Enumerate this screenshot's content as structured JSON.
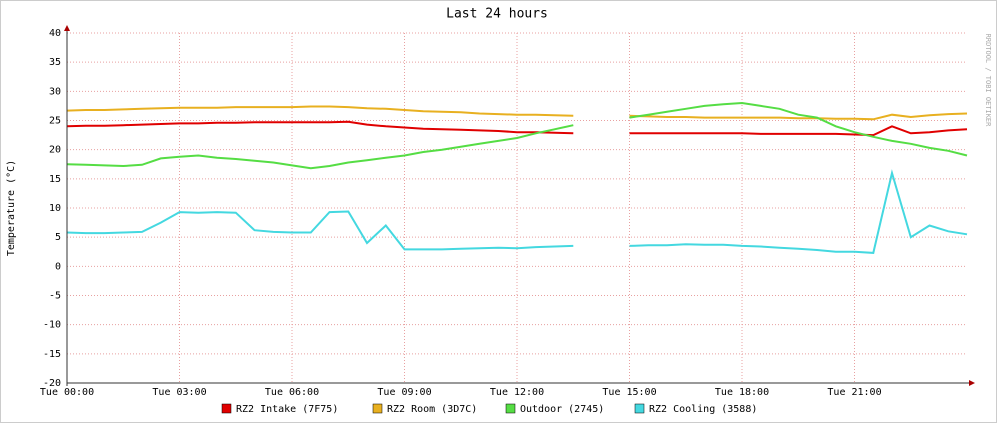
{
  "chart_data": {
    "type": "line",
    "title": "Last 24 hours",
    "y_label": "Temperature (°C)",
    "watermark": "RRDTOOL / TOBI OETIKER",
    "x": [
      0,
      0.5,
      1,
      1.5,
      2,
      2.5,
      3,
      3.5,
      4,
      4.5,
      5,
      5.5,
      6,
      6.5,
      7,
      7.5,
      8,
      8.5,
      9,
      9.5,
      10,
      10.5,
      11,
      11.5,
      12,
      12.5,
      13,
      13.5,
      14,
      14.5,
      15,
      15.5,
      16,
      16.5,
      17,
      17.5,
      18,
      18.5,
      19,
      19.5,
      20,
      20.5,
      21,
      21.5,
      22,
      22.5,
      23,
      23.5,
      24
    ],
    "xlim": [
      0,
      24
    ],
    "xticks": [
      {
        "value": 0,
        "label": "Tue 00:00"
      },
      {
        "value": 3,
        "label": "Tue 03:00"
      },
      {
        "value": 6,
        "label": "Tue 06:00"
      },
      {
        "value": 9,
        "label": "Tue 09:00"
      },
      {
        "value": 12,
        "label": "Tue 12:00"
      },
      {
        "value": 15,
        "label": "Tue 15:00"
      },
      {
        "value": 18,
        "label": "Tue 18:00"
      },
      {
        "value": 21,
        "label": "Tue 21:00"
      }
    ],
    "ylim": [
      -20,
      40
    ],
    "yticks": [
      -20,
      -15,
      -10,
      -5,
      0,
      5,
      10,
      15,
      20,
      25,
      30,
      35,
      40
    ],
    "grid": true,
    "series": [
      {
        "name": "RZ2 Intake (7F75)",
        "color": "#e00000",
        "values": [
          24,
          24.1,
          24.1,
          24.2,
          24.3,
          24.4,
          24.5,
          24.5,
          24.6,
          24.6,
          24.7,
          24.7,
          24.7,
          24.7,
          24.7,
          24.8,
          24.3,
          24,
          23.8,
          23.6,
          23.5,
          23.4,
          23.3,
          23.2,
          23,
          23,
          22.9,
          22.8,
          null,
          null,
          22.8,
          22.8,
          22.8,
          22.8,
          22.8,
          22.8,
          22.8,
          22.7,
          22.7,
          22.7,
          22.7,
          22.7,
          22.6,
          22.5,
          24,
          22.8,
          23,
          23.3,
          23.5
        ]
      },
      {
        "name": "RZ2 Room (3D7C)",
        "color": "#e8b020",
        "values": [
          26.7,
          26.8,
          26.8,
          26.9,
          27,
          27.1,
          27.2,
          27.2,
          27.2,
          27.3,
          27.3,
          27.3,
          27.3,
          27.4,
          27.4,
          27.3,
          27.1,
          27,
          26.8,
          26.6,
          26.5,
          26.4,
          26.2,
          26.1,
          26,
          26,
          25.9,
          25.8,
          null,
          null,
          25.8,
          25.7,
          25.6,
          25.6,
          25.5,
          25.5,
          25.5,
          25.5,
          25.5,
          25.4,
          25.4,
          25.3,
          25.3,
          25.2,
          26,
          25.6,
          25.9,
          26.1,
          26.2
        ]
      },
      {
        "name": "Outdoor (2745)",
        "color": "#55dd44",
        "values": [
          17.5,
          17.4,
          17.3,
          17.2,
          17.4,
          18.5,
          18.8,
          19,
          18.6,
          18.4,
          18.1,
          17.8,
          17.3,
          16.8,
          17.2,
          17.8,
          18.2,
          18.6,
          19,
          19.6,
          20,
          20.5,
          21,
          21.5,
          22,
          22.8,
          23.5,
          24.2,
          null,
          null,
          25.5,
          26,
          26.5,
          27,
          27.5,
          27.8,
          28,
          27.5,
          27,
          26,
          25.5,
          24,
          23,
          22.2,
          21.5,
          21,
          20.3,
          19.8,
          19
        ]
      },
      {
        "name": "RZ2 Cooling (3588)",
        "color": "#44d8e0",
        "values": [
          5.8,
          5.7,
          5.7,
          5.8,
          5.9,
          7.5,
          9.3,
          9.2,
          9.3,
          9.2,
          6.2,
          5.9,
          5.8,
          5.8,
          9.3,
          9.4,
          4,
          7,
          2.9,
          2.9,
          2.9,
          3,
          3.1,
          3.2,
          3.1,
          3.3,
          3.4,
          3.5,
          null,
          null,
          3.5,
          3.6,
          3.6,
          3.8,
          3.7,
          3.7,
          3.5,
          3.4,
          3.2,
          3,
          2.8,
          2.5,
          2.5,
          2.3,
          16,
          5,
          7,
          6,
          5.5
        ]
      }
    ]
  }
}
